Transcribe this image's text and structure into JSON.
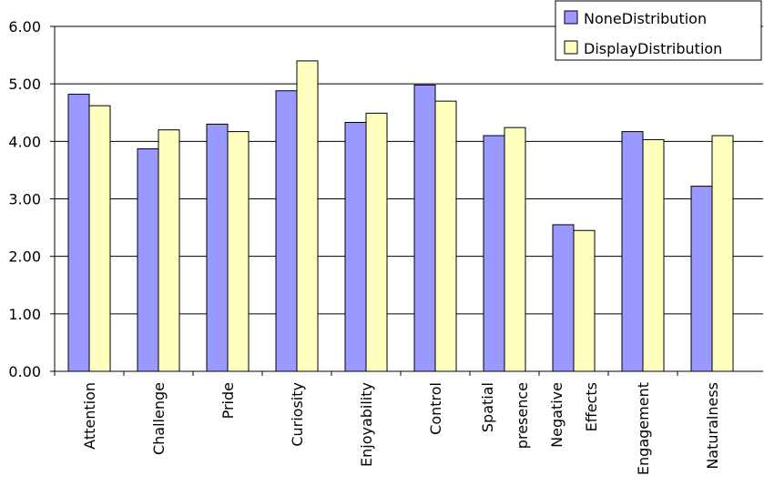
{
  "chart_data": {
    "type": "bar",
    "categories": [
      "Attention",
      "Challenge",
      "Pride",
      "Curiosity",
      "Enjoyability",
      "Control",
      "Spatial presence",
      "Negative Effects",
      "Engagement",
      "Naturalness"
    ],
    "series": [
      {
        "name": "NoneDistribution",
        "color": "#9999ff",
        "values": [
          4.82,
          3.87,
          4.3,
          4.88,
          4.33,
          4.98,
          4.1,
          2.55,
          4.17,
          3.22
        ]
      },
      {
        "name": "DisplayDistribution",
        "color": "#ffffc0",
        "values": [
          4.62,
          4.2,
          4.17,
          5.4,
          4.49,
          4.7,
          4.24,
          2.45,
          4.03,
          4.1
        ]
      }
    ],
    "ylim": [
      0,
      6
    ],
    "yticks": [
      {
        "value": 0,
        "label": "0.00"
      },
      {
        "value": 1,
        "label": "1.00"
      },
      {
        "value": 2,
        "label": "2.00"
      },
      {
        "value": 3,
        "label": "3.00"
      },
      {
        "value": 4,
        "label": "4.00"
      },
      {
        "value": 5,
        "label": "5.00"
      },
      {
        "value": 6,
        "label": "6.00"
      }
    ],
    "grid": true
  }
}
